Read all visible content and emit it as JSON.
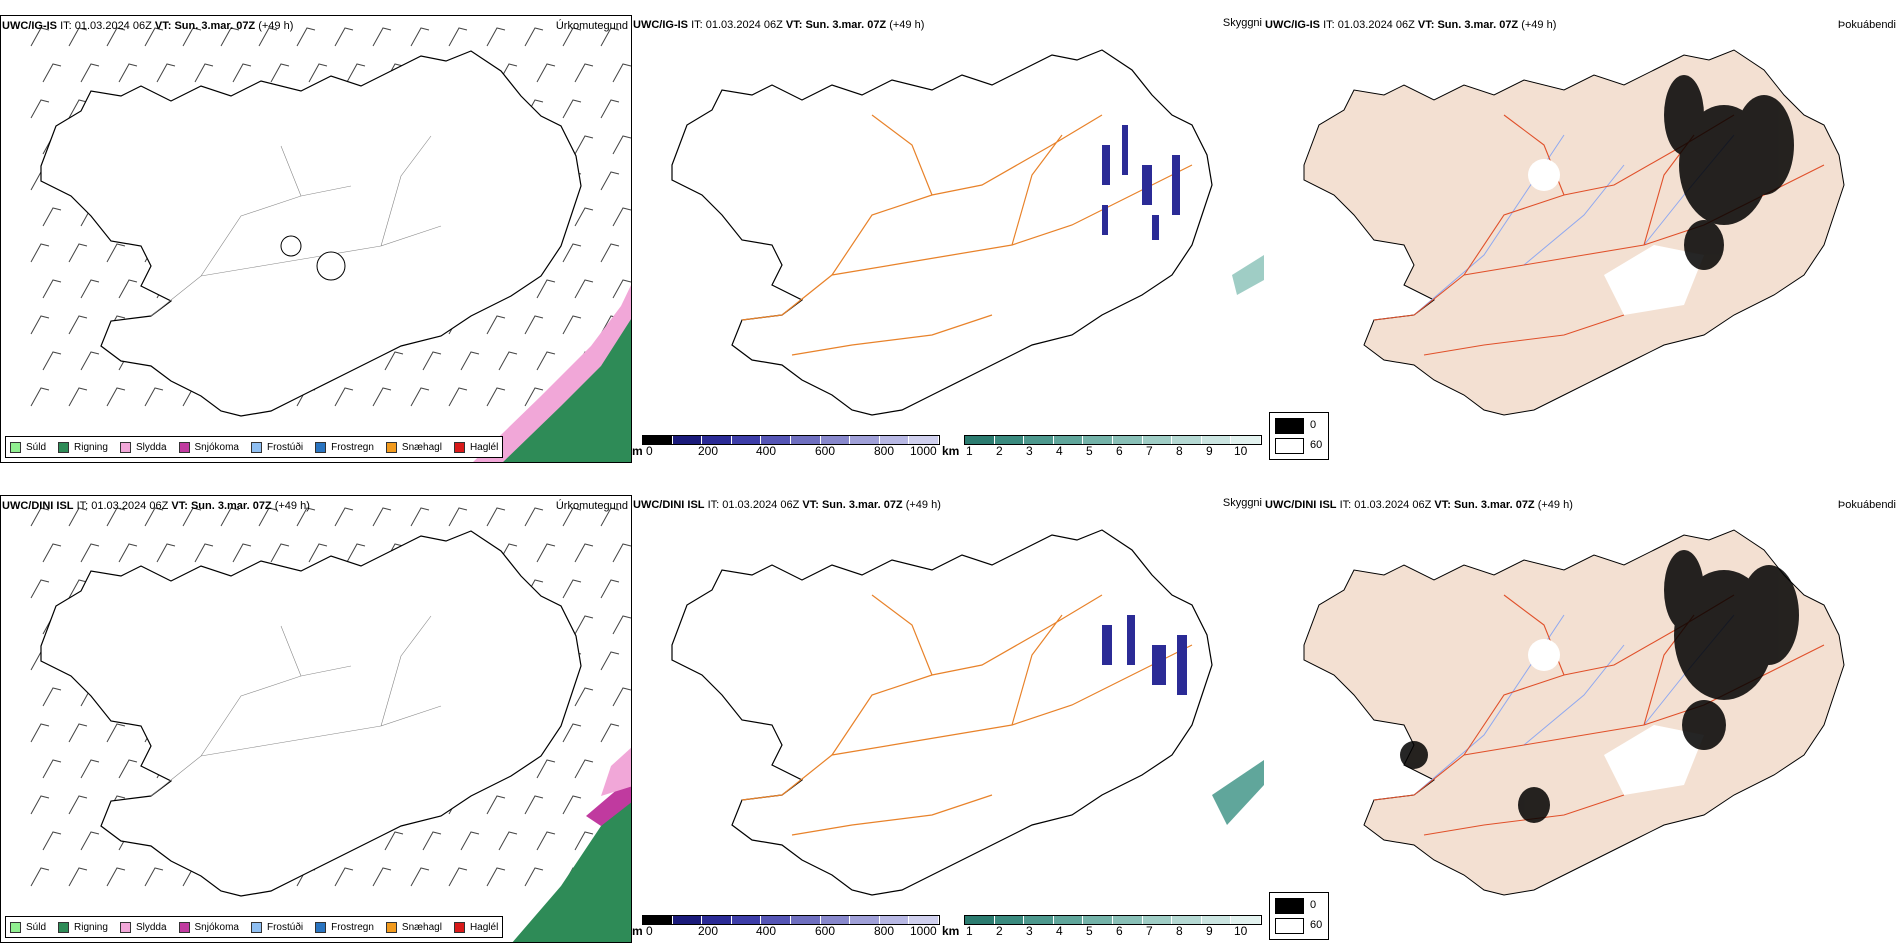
{
  "rows": [
    {
      "model": "UWC/IG-IS",
      "it_label": "IT:",
      "it_value": "01.03.2024 06Z",
      "vt_label": "VT:",
      "vt_value": "Sun. 3.mar. 07Z",
      "lead": "(+49 h)"
    },
    {
      "model": "UWC/DINI ISL",
      "it_label": "IT:",
      "it_value": "01.03.2024 06Z",
      "vt_label": "VT:",
      "vt_value": "Sun. 3.mar. 07Z",
      "lead": "(+49 h)"
    }
  ],
  "titles": {
    "precip_type": "Úrkomutegund",
    "visibility": "Skyggni",
    "fog": "Þokuábendi"
  },
  "precip_legend": [
    {
      "label": "Súld",
      "color": "#90ee90"
    },
    {
      "label": "Rigning",
      "color": "#2e8b57"
    },
    {
      "label": "Slydda",
      "color": "#f1a7d8"
    },
    {
      "label": "Snjókoma",
      "color": "#c03a9f"
    },
    {
      "label": "Frostúði",
      "color": "#8fbff2"
    },
    {
      "label": "Frostregn",
      "color": "#2a74c0"
    },
    {
      "label": "Snæhagl",
      "color": "#f29a1c"
    },
    {
      "label": "Haglél",
      "color": "#d81a1a"
    }
  ],
  "vis_m_bar": {
    "unit": "m",
    "ticks": [
      "0",
      "200",
      "400",
      "600",
      "800",
      "1000"
    ],
    "colors": [
      "#000000",
      "#1a1a7a",
      "#2b2b96",
      "#3d3da8",
      "#5555b5",
      "#6f6fc0",
      "#8888cc",
      "#a0a0d8",
      "#b8b8e4",
      "#d0d0ee"
    ]
  },
  "vis_km_bar": {
    "unit": "km",
    "ticks": [
      "1",
      "2",
      "3",
      "4",
      "5",
      "6",
      "7",
      "8",
      "9",
      "10"
    ],
    "colors": [
      "#2b7b6f",
      "#3a8a7e",
      "#4d988d",
      "#60a69b",
      "#74b3a9",
      "#89c0b7",
      "#9fcdc5",
      "#b5d9d3",
      "#cbe5e1",
      "#e2f2ef"
    ]
  },
  "fog_legend": [
    {
      "label": "0",
      "color": "#000000"
    },
    {
      "label": "60",
      "color": "#ffffff"
    }
  ],
  "colors": {
    "coast": "#000000",
    "roads_vis": "#e8822a",
    "roads_fog": "#e0502a",
    "rivers_fog": "#8fa8f0",
    "land_fog": "#f3e0d2",
    "barbs": "#444444"
  }
}
